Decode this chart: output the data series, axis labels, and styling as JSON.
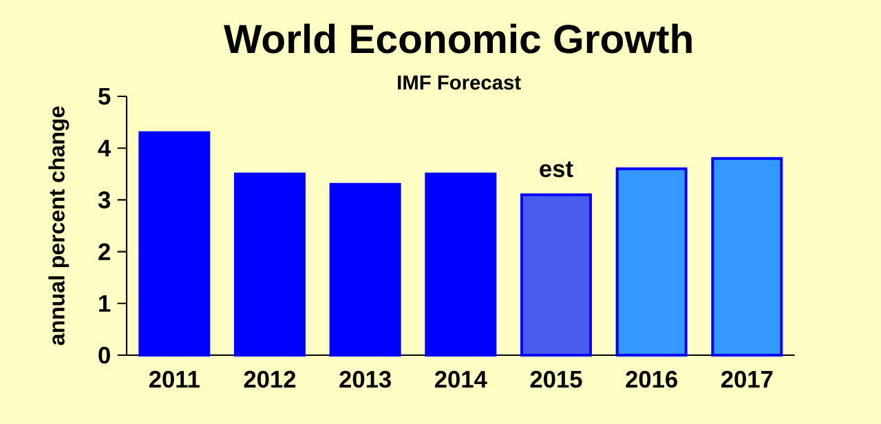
{
  "chart_data": {
    "type": "bar",
    "title": "World Economic Growth",
    "subtitle": "IMF Forecast",
    "ylabel": "annual percent change",
    "categories": [
      "2011",
      "2012",
      "2013",
      "2014",
      "2015",
      "2016",
      "2017"
    ],
    "values": [
      4.3,
      3.5,
      3.3,
      3.5,
      3.1,
      3.6,
      3.8
    ],
    "colors": [
      "#0000ff",
      "#0000ff",
      "#0000ff",
      "#0000ff",
      "#4a5cf0",
      "#3399ff",
      "#3399ff"
    ],
    "ylim": [
      0,
      5
    ],
    "yticks": [
      0,
      1,
      2,
      3,
      4,
      5
    ],
    "annotations": [
      {
        "text": "est",
        "x": "2015",
        "y": 3.1
      }
    ]
  }
}
